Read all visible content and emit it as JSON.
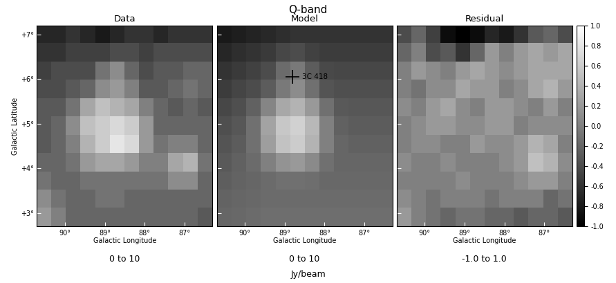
{
  "title": "Q-band",
  "unit_label": "Jy/beam",
  "chart_data": [
    {
      "type": "heatmap",
      "title": "Data",
      "xlabel": "Galactic Longitude",
      "ylabel": "Galactic Latitude",
      "scale_label": "0 to 10",
      "color_range": [
        0,
        10
      ],
      "tick_labels": true,
      "xlim": [
        90.7,
        86.3
      ],
      "ylim": [
        2.7,
        7.2
      ],
      "xticks": [
        {
          "value": 90,
          "label": "90°"
        },
        {
          "value": 89,
          "label": "89°"
        },
        {
          "value": 88,
          "label": "88°"
        },
        {
          "value": 87,
          "label": "87°"
        }
      ],
      "yticks": [
        {
          "value": 3,
          "label": "+3°"
        },
        {
          "value": 4,
          "label": "+4°"
        },
        {
          "value": 5,
          "label": "+5°"
        },
        {
          "value": 6,
          "label": "+6°"
        },
        {
          "value": 7,
          "label": "+7°"
        }
      ],
      "cells": [
        [
          1.5,
          1.5,
          2,
          1.5,
          1,
          1.5,
          2,
          2,
          1.5,
          2,
          2,
          2
        ],
        [
          2,
          2,
          2.5,
          2.5,
          2.5,
          3,
          3,
          2.5,
          3,
          3,
          3,
          3
        ],
        [
          2.5,
          3,
          3,
          3,
          4.5,
          5.5,
          4,
          3,
          3.5,
          3.5,
          4,
          4
        ],
        [
          3,
          3,
          3.5,
          4,
          5.5,
          6,
          5,
          3.5,
          3.5,
          4,
          4.5,
          4
        ],
        [
          3.5,
          3.5,
          4.5,
          6.5,
          7.5,
          7,
          6.5,
          5,
          4,
          3.5,
          4,
          3.5
        ],
        [
          3.5,
          4,
          5.5,
          7.5,
          8,
          8.5,
          8,
          6,
          4,
          4,
          4,
          4
        ],
        [
          3.5,
          4,
          5,
          7,
          8,
          9,
          8.5,
          6,
          4.5,
          5,
          5,
          4
        ],
        [
          4,
          4,
          4.5,
          6,
          6.5,
          6.5,
          6,
          5,
          5,
          6.5,
          7,
          4.5
        ],
        [
          4.5,
          4,
          4,
          4.5,
          4.5,
          4.5,
          4.5,
          4.5,
          4.5,
          5.5,
          5.5,
          4
        ],
        [
          5.5,
          4.5,
          4,
          4,
          4.5,
          4.5,
          4,
          4,
          4,
          4,
          4,
          4
        ],
        [
          6,
          5,
          4,
          4,
          4,
          4,
          4,
          4,
          4,
          4,
          4,
          3.5
        ]
      ]
    },
    {
      "type": "heatmap",
      "title": "Model",
      "xlabel": "Galactic Longitude",
      "scale_label": "0 to 10",
      "color_range": [
        0,
        10
      ],
      "tick_labels": "x",
      "xlim": [
        90.7,
        86.3
      ],
      "ylim": [
        2.7,
        7.2
      ],
      "xticks": [
        {
          "value": 90,
          "label": "90°"
        },
        {
          "value": 89,
          "label": "89°"
        },
        {
          "value": 88,
          "label": "88°"
        },
        {
          "value": 87,
          "label": "87°"
        }
      ],
      "yticks": [
        3,
        4,
        5,
        6,
        7
      ],
      "annotation": {
        "text": "3C 418",
        "x": 88.8,
        "y": 6.05
      },
      "cells": [
        [
          1,
          1.2,
          1.4,
          1.6,
          1.8,
          2,
          2,
          2,
          2,
          2,
          2,
          2
        ],
        [
          1.5,
          1.8,
          2,
          2.3,
          2.8,
          3,
          2.6,
          2.4,
          2.4,
          2.4,
          2.4,
          2.4
        ],
        [
          2,
          2.3,
          2.6,
          3,
          4.2,
          4.8,
          3.6,
          2.9,
          2.8,
          2.8,
          2.8,
          2.8
        ],
        [
          2.4,
          2.7,
          3,
          3.6,
          4.8,
          5.5,
          4.4,
          3.3,
          3.1,
          3.1,
          3.1,
          3.1
        ],
        [
          2.8,
          3.1,
          3.8,
          5.2,
          6.6,
          7,
          6,
          4.4,
          3.5,
          3.4,
          3.4,
          3.4
        ],
        [
          3.1,
          3.4,
          4.4,
          6.4,
          7.8,
          8.2,
          7.2,
          5,
          3.8,
          3.6,
          3.6,
          3.6
        ],
        [
          3.3,
          3.6,
          4.4,
          6.2,
          7.6,
          8,
          7,
          5,
          4,
          3.8,
          3.8,
          3.8
        ],
        [
          3.5,
          3.8,
          4.2,
          5,
          5.8,
          6,
          5.4,
          4.4,
          4,
          4,
          4,
          4
        ],
        [
          3.7,
          3.9,
          4,
          4.2,
          4.4,
          4.4,
          4.3,
          4.1,
          4.1,
          4.1,
          4.1,
          4.1
        ],
        [
          3.9,
          4,
          4.1,
          4.2,
          4.2,
          4.2,
          4.2,
          4.2,
          4.2,
          4.2,
          4.2,
          4.2
        ],
        [
          4,
          4.1,
          4.2,
          4.3,
          4.3,
          4.3,
          4.3,
          4.3,
          4.3,
          4.3,
          4.3,
          4.3
        ]
      ]
    },
    {
      "type": "heatmap",
      "title": "Residual",
      "xlabel": "Galactic Longitude",
      "scale_label": "-1.0 to 1.0",
      "color_range": [
        -1.0,
        1.0
      ],
      "tick_labels": "x",
      "xlim": [
        90.7,
        86.3
      ],
      "ylim": [
        2.7,
        7.2
      ],
      "xticks": [
        {
          "value": 90,
          "label": "90°"
        },
        {
          "value": 89,
          "label": "89°"
        },
        {
          "value": 88,
          "label": "88°"
        },
        {
          "value": 87,
          "label": "87°"
        }
      ],
      "yticks": [
        3,
        4,
        5,
        6,
        7
      ],
      "colorbar": {
        "range": [
          -1.0,
          1.0
        ],
        "ticks": [
          -1.0,
          -0.8,
          -0.6,
          -0.4,
          -0.2,
          0.0,
          0.2,
          0.4,
          0.6,
          0.8,
          1.0
        ]
      },
      "cells": [
        [
          -0.4,
          -0.2,
          -0.5,
          -0.9,
          -1,
          -0.9,
          -0.7,
          -0.8,
          -0.6,
          -0.3,
          -0.2,
          -0.4
        ],
        [
          -0.2,
          0,
          -0.4,
          -0.3,
          -0.6,
          -0.2,
          0.2,
          0,
          0.2,
          0.3,
          0.2,
          0.3
        ],
        [
          0,
          0.2,
          0.1,
          0,
          0.2,
          0.3,
          0.2,
          0.1,
          0.2,
          0.3,
          0.3,
          0.3
        ],
        [
          0,
          -0.1,
          0.1,
          0.1,
          0.3,
          0.2,
          0.2,
          0,
          0.1,
          0.3,
          0.4,
          0.2
        ],
        [
          0.1,
          0,
          0.2,
          0.3,
          0.1,
          0,
          0.2,
          0.2,
          0.1,
          0,
          0.2,
          0
        ],
        [
          0,
          0.1,
          0.2,
          0.2,
          0.1,
          0.1,
          0.2,
          0.2,
          0,
          0.1,
          0.1,
          0.1
        ],
        [
          0,
          0.1,
          0.1,
          0,
          0,
          0.2,
          0.1,
          0.1,
          0.2,
          0.4,
          0.3,
          0
        ],
        [
          0.1,
          0,
          0,
          0.1,
          0,
          0,
          0,
          0.1,
          0.2,
          0.5,
          0.4,
          0.1
        ],
        [
          0,
          0,
          0,
          0,
          0.1,
          0,
          0,
          0,
          0.1,
          0.2,
          0.2,
          0
        ],
        [
          0.1,
          0,
          -0.1,
          0,
          0,
          0,
          -0.1,
          0,
          0,
          0,
          -0.2,
          -0.1
        ],
        [
          0.2,
          0,
          -0.1,
          -0.2,
          -0.1,
          -0.1,
          -0.2,
          -0.2,
          -0.3,
          -0.2,
          -0.2,
          -0.3
        ]
      ]
    }
  ]
}
